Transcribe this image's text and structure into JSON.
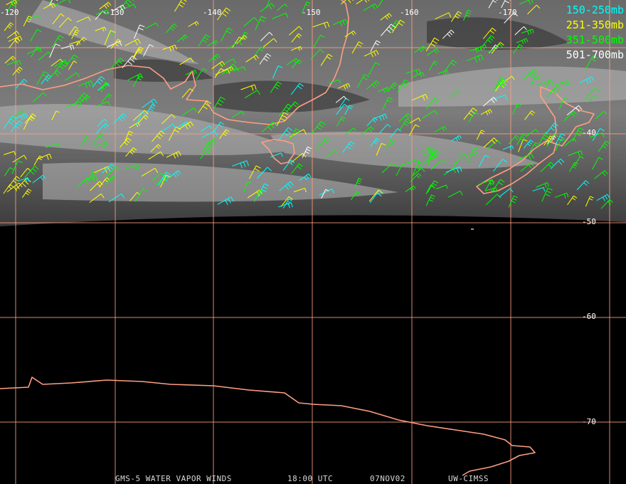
{
  "map": {
    "lon_labels": [
      "-120",
      "-130",
      "-140",
      "-150",
      "-160",
      "-170"
    ],
    "lat_labels": [
      "-40",
      "-50",
      "-60",
      "-70"
    ]
  },
  "legend": [
    {
      "label": "150-250mb",
      "color": "#00ffff"
    },
    {
      "label": "251-350mb",
      "color": "#ffff00"
    },
    {
      "label": "351-500mb",
      "color": "#00ff00"
    },
    {
      "label": "501-700mb",
      "color": "#ffffff"
    }
  ],
  "footer": [
    "GMS-5 WATER VAPOR WINDS",
    "18:00 UTC",
    "07NOV02",
    "UW-CIMSS"
  ]
}
